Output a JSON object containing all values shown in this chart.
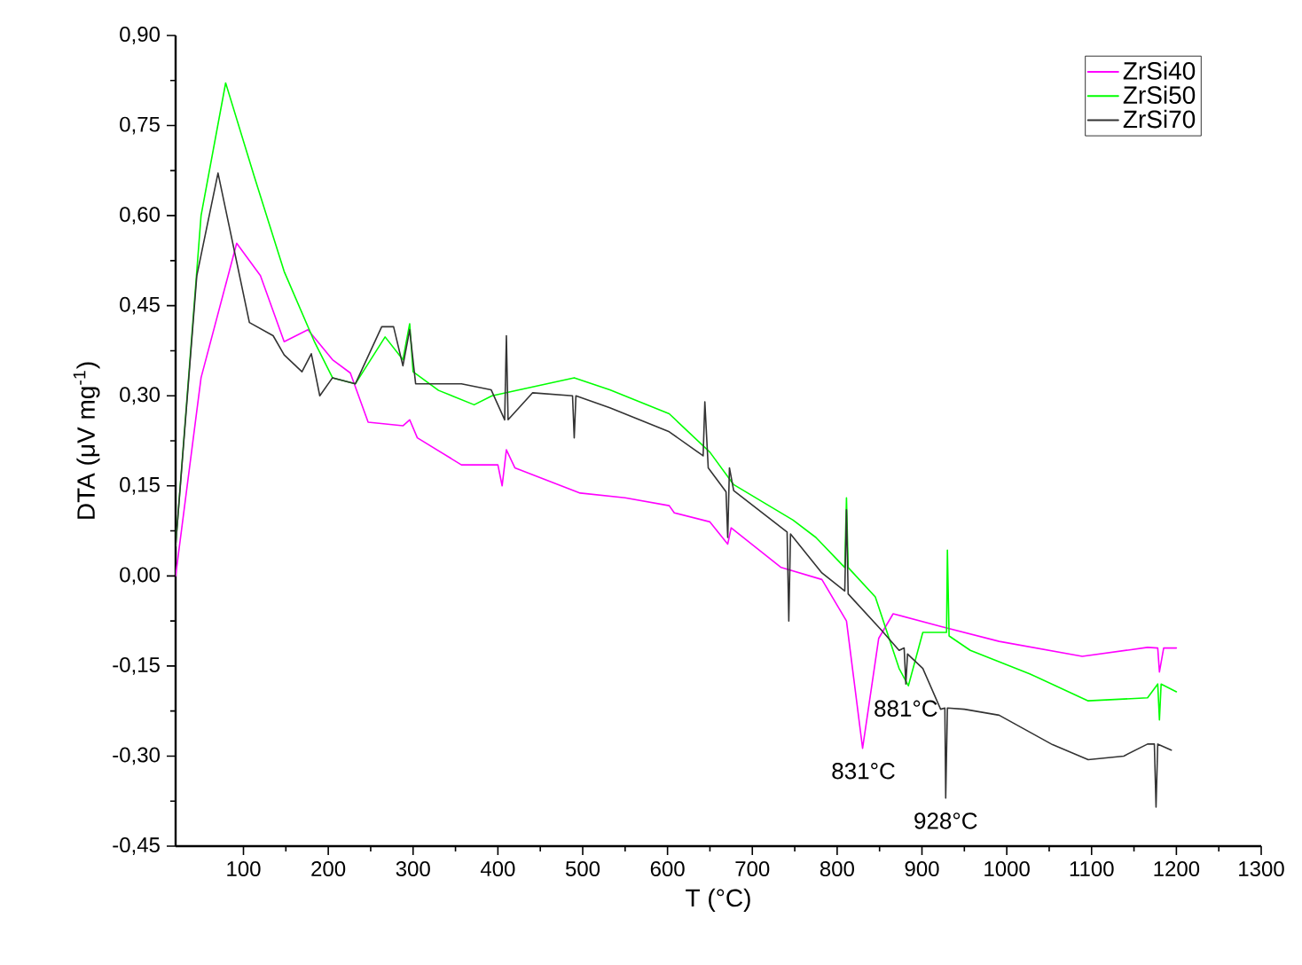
{
  "chart_data": {
    "type": "line",
    "xlabel": "T (°C)",
    "ylabel": "DTA (μV mg$^{-1}$)",
    "xlim": [
      20,
      1300
    ],
    "ylim": [
      -0.45,
      0.9
    ],
    "xticks": [
      100,
      200,
      300,
      400,
      500,
      600,
      700,
      800,
      900,
      1000,
      1100,
      1200,
      1300
    ],
    "yticks": [
      {
        "value": -0.45,
        "label": "-0,45"
      },
      {
        "value": -0.3,
        "label": "-0,30"
      },
      {
        "value": -0.15,
        "label": "-0,15"
      },
      {
        "value": 0,
        "label": "0,00"
      },
      {
        "value": 0.15,
        "label": "0,15"
      },
      {
        "value": 0.3,
        "label": "0,30"
      },
      {
        "value": 0.45,
        "label": "0,45"
      },
      {
        "value": 0.6,
        "label": "0,60"
      },
      {
        "value": 0.75,
        "label": "0,75"
      },
      {
        "value": 0.9,
        "label": "0,90"
      }
    ],
    "legend": "top right",
    "grid": false,
    "marker": "none",
    "line_style": "solid",
    "series": [
      {
        "name": "ZrSi40",
        "color": "#ff00ff",
        "x": [
          20,
          50,
          92,
          120,
          148,
          176,
          205,
          226,
          247,
          288,
          296,
          305,
          357,
          400,
          405,
          410,
          420,
          497,
          550,
          602,
          608,
          650,
          671,
          675,
          734,
          782,
          811,
          830,
          849,
          866,
          922,
          991,
          1089,
          1166,
          1178,
          1180,
          1185,
          1200
        ],
        "values": [
          0.0,
          0.33,
          0.554,
          0.5,
          0.39,
          0.41,
          0.36,
          0.338,
          0.256,
          0.25,
          0.26,
          0.23,
          0.185,
          0.185,
          0.15,
          0.21,
          0.18,
          0.138,
          0.13,
          0.117,
          0.105,
          0.09,
          0.053,
          0.08,
          0.014,
          -0.006,
          -0.075,
          -0.287,
          -0.104,
          -0.063,
          -0.084,
          -0.109,
          -0.134,
          -0.119,
          -0.12,
          -0.16,
          -0.12,
          -0.12
        ]
      },
      {
        "name": "ZrSi50",
        "color": "#00ff00",
        "x": [
          20,
          50,
          79,
          113,
          148,
          184,
          205,
          232,
          267,
          288,
          296,
          300,
          330,
          372,
          393,
          490,
          532,
          602,
          650,
          678,
          748,
          775,
          809,
          811,
          813,
          845,
          873,
          884,
          901,
          929,
          930,
          932,
          957,
          1027,
          1096,
          1166,
          1178,
          1180,
          1182,
          1200
        ],
        "values": [
          0.05,
          0.6,
          0.821,
          0.664,
          0.507,
          0.389,
          0.33,
          0.32,
          0.398,
          0.36,
          0.42,
          0.34,
          0.309,
          0.285,
          0.3,
          0.33,
          0.31,
          0.27,
          0.206,
          0.152,
          0.093,
          0.064,
          0.014,
          0.13,
          0.014,
          -0.035,
          -0.154,
          -0.183,
          -0.094,
          -0.094,
          0.043,
          -0.1,
          -0.124,
          -0.163,
          -0.208,
          -0.203,
          -0.18,
          -0.24,
          -0.18,
          -0.193
        ]
      },
      {
        "name": "ZrSi70",
        "color": "#333333",
        "x": [
          20,
          45,
          70,
          107,
          135,
          148,
          169,
          180,
          190,
          205,
          232,
          263,
          277,
          288,
          296,
          303,
          357,
          392,
          408,
          410,
          412,
          441,
          488,
          490,
          492,
          532,
          602,
          642,
          644,
          648,
          669,
          671,
          673,
          678,
          741,
          743,
          745,
          782,
          809,
          811,
          813,
          852,
          873,
          879,
          881,
          883,
          901,
          922,
          927,
          928,
          930,
          950,
          991,
          1054,
          1096,
          1138,
          1166,
          1174,
          1176,
          1178,
          1194
        ],
        "values": [
          0.05,
          0.5,
          0.671,
          0.422,
          0.4,
          0.368,
          0.34,
          0.37,
          0.3,
          0.33,
          0.32,
          0.415,
          0.415,
          0.35,
          0.41,
          0.32,
          0.32,
          0.31,
          0.26,
          0.4,
          0.26,
          0.305,
          0.3,
          0.23,
          0.3,
          0.28,
          0.24,
          0.2,
          0.29,
          0.18,
          0.14,
          0.064,
          0.18,
          0.142,
          0.073,
          -0.075,
          0.07,
          0.005,
          -0.025,
          0.11,
          -0.03,
          -0.09,
          -0.124,
          -0.12,
          -0.18,
          -0.13,
          -0.154,
          -0.222,
          -0.22,
          -0.37,
          -0.22,
          -0.222,
          -0.232,
          -0.281,
          -0.306,
          -0.3,
          -0.28,
          -0.28,
          -0.385,
          -0.28,
          -0.29
        ]
      }
    ],
    "annotations": [
      {
        "text": "831°C",
        "x": 831,
        "y": -0.287
      },
      {
        "text": "881°C",
        "x": 881,
        "y": -0.183
      },
      {
        "text": "928°C",
        "x": 928,
        "y": -0.37
      }
    ]
  }
}
